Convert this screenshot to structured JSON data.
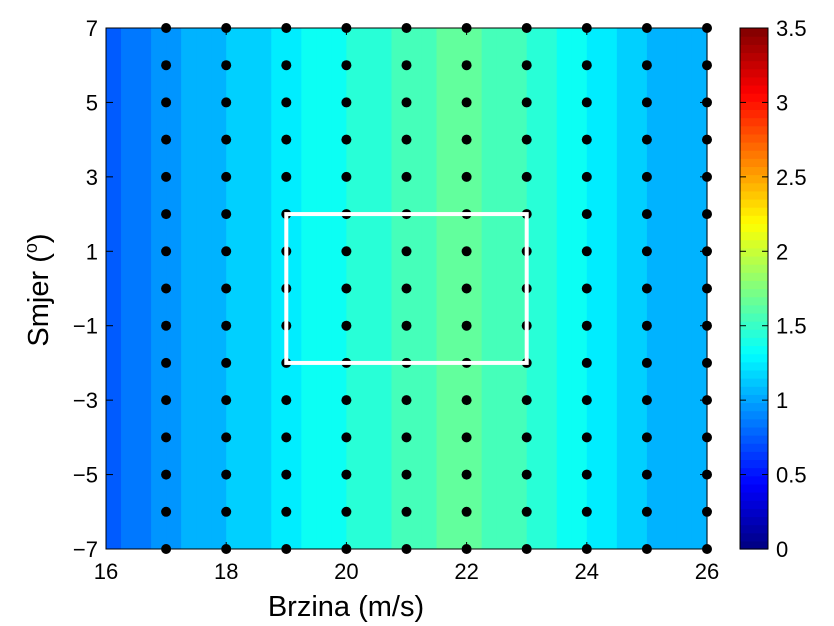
{
  "chart_data": {
    "type": "heatmap",
    "title": "",
    "xlabel": "Brzina (m/s)",
    "ylabel_main": "Smjer (",
    "ylabel_sup": "o",
    "ylabel_close": ")",
    "xlim": [
      16,
      26
    ],
    "ylim": [
      -7,
      7
    ],
    "x_ticks": [
      16,
      18,
      20,
      22,
      24,
      26
    ],
    "x_tick_labels": [
      "16",
      "18",
      "20",
      "22",
      "24",
      "26"
    ],
    "y_ticks": [
      -7,
      -5,
      -3,
      -1,
      1,
      3,
      5,
      7
    ],
    "y_tick_labels": [
      "−7",
      "−5",
      "−3",
      "−1",
      "1",
      "3",
      "5",
      "7"
    ],
    "colorbar": {
      "range": [
        0,
        3.5
      ],
      "ticks": [
        0,
        0.5,
        1,
        1.5,
        2,
        2.5,
        3,
        3.5
      ],
      "tick_labels": [
        "0",
        "0.5",
        "1",
        "1.5",
        "2",
        "2.5",
        "3",
        "3.5"
      ],
      "colormap": "jet"
    },
    "grid_x": [
      16,
      17,
      18,
      19,
      20,
      21,
      22,
      23,
      24,
      25,
      26
    ],
    "grid_y": [
      -7,
      -6,
      -5,
      -4,
      -3,
      -2,
      -1,
      0,
      1,
      2,
      3,
      4,
      5,
      6,
      7
    ],
    "z_by_x": [
      0.75,
      0.95,
      1.1,
      1.25,
      1.4,
      1.55,
      1.65,
      1.5,
      1.3,
      1.1,
      1.05
    ],
    "sample_points_x": [
      17,
      18,
      19,
      20,
      21,
      22,
      23,
      24,
      25,
      26
    ],
    "sample_points_y": [
      -7,
      -6,
      -5,
      -4,
      -3,
      -2,
      -1,
      0,
      1,
      2,
      3,
      4,
      5,
      6,
      7
    ],
    "highlight_box": {
      "x": [
        19,
        23
      ],
      "y": [
        -2,
        2
      ],
      "color": "#ffffff"
    },
    "point_color": "#000000"
  }
}
